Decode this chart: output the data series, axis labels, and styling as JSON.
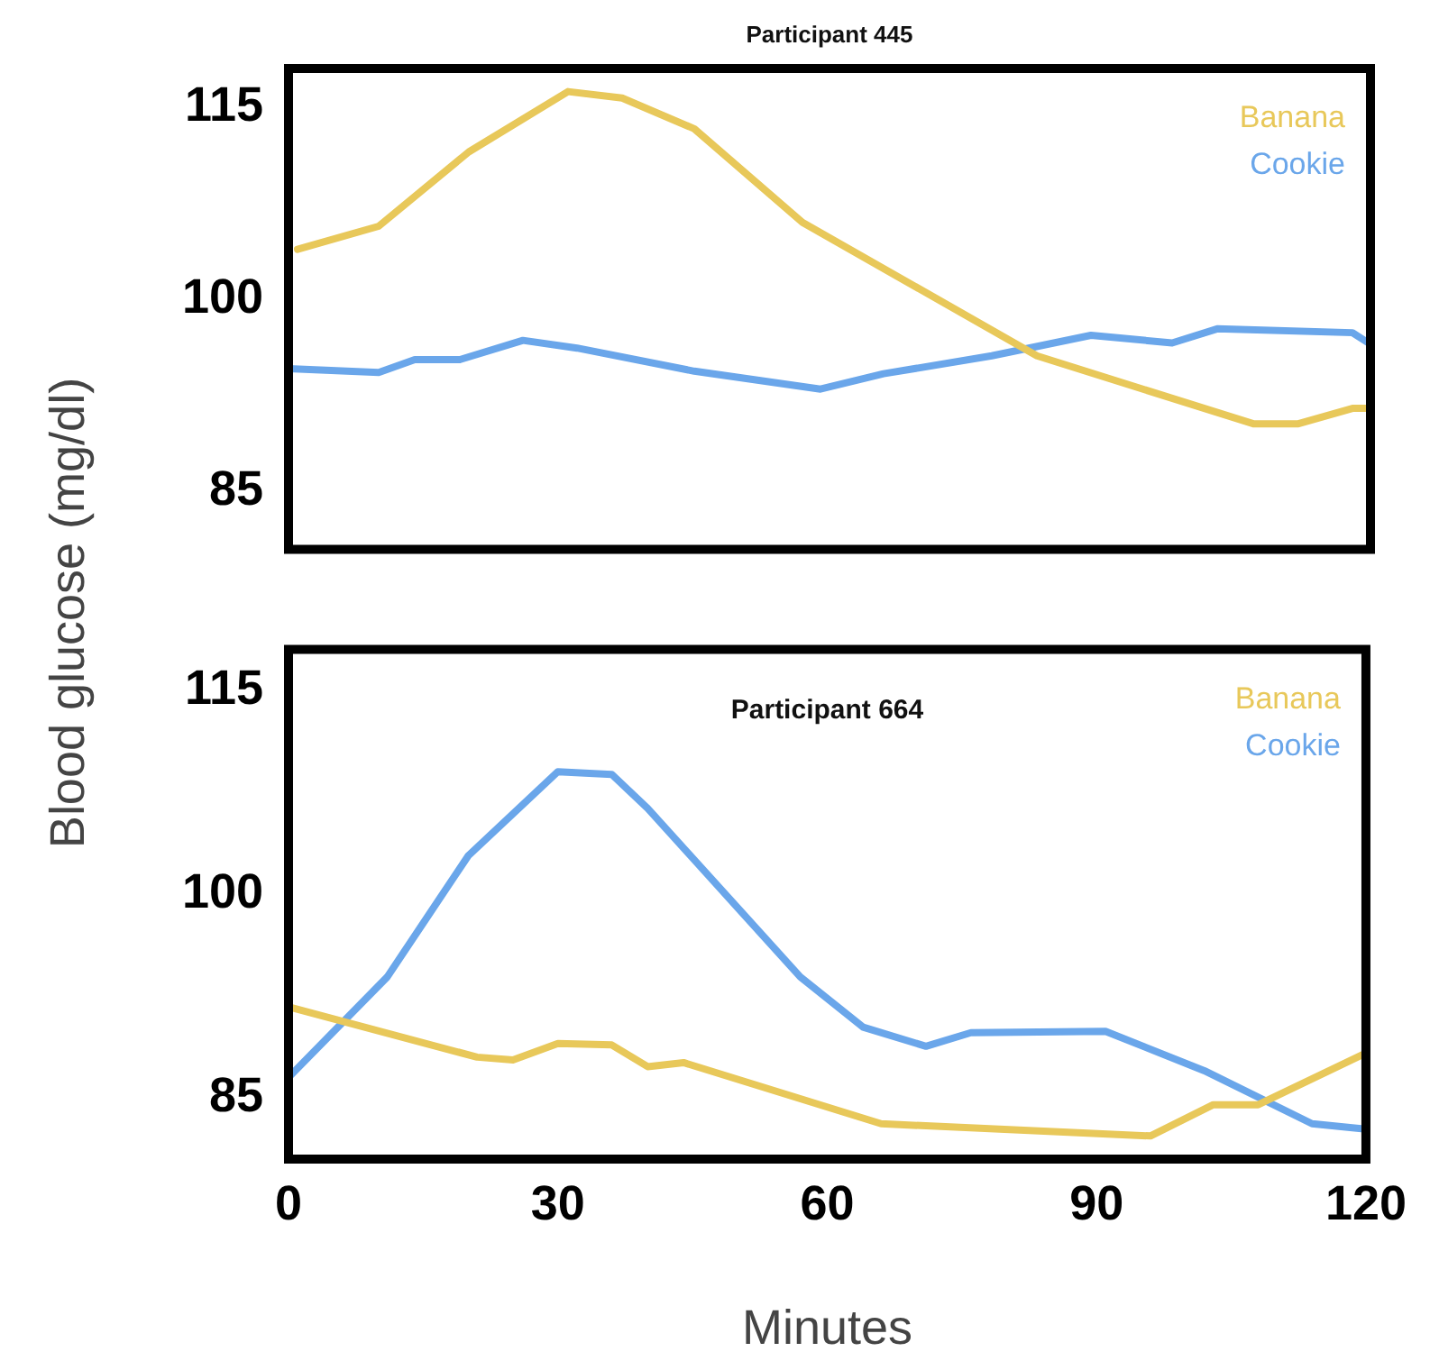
{
  "chart_data": [
    {
      "type": "line",
      "title": "Participant 445",
      "ylabel": "Blood glucose (mg/dl)",
      "xlim": [
        0,
        120
      ],
      "xticks": [
        0,
        30,
        60,
        90,
        120
      ],
      "ylim": [
        80.5,
        118
      ],
      "yticks": [
        85,
        100,
        115
      ],
      "tick_labels": "y",
      "legend": "top right",
      "series": [
        {
          "name": "Banana",
          "color": "#e8c85a",
          "x": [
            1,
            10,
            20,
            31,
            37,
            45,
            57,
            83,
            107,
            112,
            118,
            120
          ],
          "values": [
            103.9,
            105.7,
            111.5,
            116.2,
            115.7,
            113.3,
            106.0,
            95.6,
            90.3,
            90.3,
            91.5,
            91.5
          ]
        },
        {
          "name": "Cookie",
          "color": "#6aa6ea",
          "x": [
            0,
            10,
            14,
            19,
            26,
            32,
            45,
            59,
            66,
            78,
            89,
            98,
            103,
            118,
            120
          ],
          "values": [
            94.6,
            94.3,
            95.3,
            95.3,
            96.8,
            96.2,
            94.4,
            93.0,
            94.2,
            95.6,
            97.2,
            96.6,
            97.7,
            97.4,
            96.5
          ]
        }
      ]
    },
    {
      "type": "line",
      "title": "Participant 664",
      "xlabel": "Minutes",
      "xlim": [
        0,
        120
      ],
      "xticks": [
        0,
        30,
        60,
        90,
        120
      ],
      "ylim": [
        80.5,
        118
      ],
      "yticks": [
        85,
        100,
        115
      ],
      "legend": "top right",
      "series": [
        {
          "name": "Banana",
          "color": "#e8c85a",
          "x": [
            0,
            21,
            25,
            30,
            36,
            40,
            44,
            66,
            96,
            103,
            108,
            120
          ],
          "values": [
            91.7,
            88.0,
            87.8,
            89.0,
            88.9,
            87.3,
            87.6,
            83.1,
            82.2,
            84.5,
            84.5,
            88.3
          ]
        },
        {
          "name": "Cookie",
          "color": "#6aa6ea",
          "x": [
            0,
            11,
            20,
            30,
            36,
            40,
            57,
            64,
            71,
            76,
            91,
            102,
            114,
            120
          ],
          "values": [
            86.5,
            93.9,
            102.8,
            109.0,
            108.8,
            106.3,
            93.9,
            90.2,
            88.8,
            89.8,
            89.9,
            87.0,
            83.1,
            82.7
          ]
        }
      ]
    }
  ]
}
